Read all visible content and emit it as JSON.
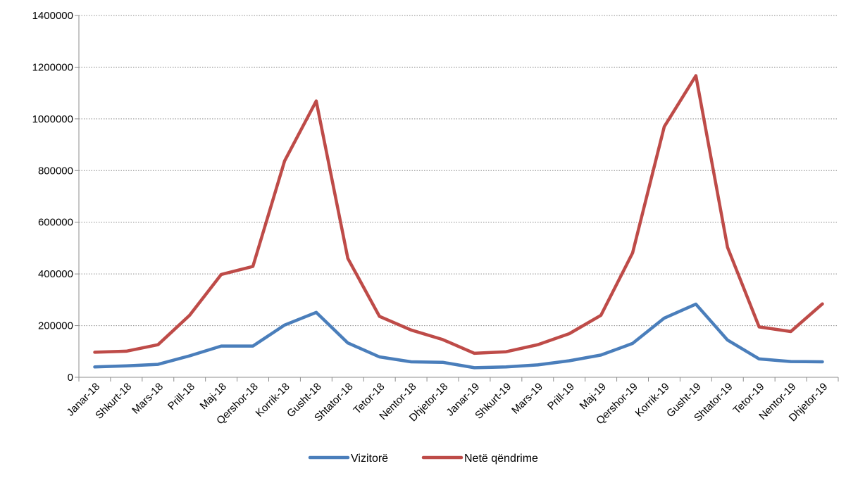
{
  "chart_data": {
    "type": "line",
    "title": "",
    "xlabel": "",
    "ylabel": "",
    "ylim": [
      0,
      1400000
    ],
    "yticks": [
      0,
      200000,
      400000,
      600000,
      800000,
      1000000,
      1200000,
      1400000
    ],
    "ytick_labels": [
      "0",
      "200000",
      "400000",
      "600000",
      "800000",
      "1000000",
      "1200000",
      "1400000"
    ],
    "grid": "horizontal",
    "legend_position": "bottom-center",
    "categories": [
      "Janar-18",
      "Shkurt-18",
      "Mars-18",
      "Prill-18",
      "Maj-18",
      "Qershor-18",
      "Korrik-18",
      "Gusht-18",
      "Shtator-18",
      "Tetor-18",
      "Nentor-18",
      "Dhjetor-18",
      "Janar-19",
      "Shkurt-19",
      "Mars-19",
      "Prill-19",
      "Maj-19",
      "Qershor-19",
      "Korrik-19",
      "Gusht-19",
      "Shtator-19",
      "Tetor-19",
      "Nentor-19",
      "Dhjetor-19"
    ],
    "series": [
      {
        "name": "Vizitorë",
        "color": "#4a7ebb",
        "values": [
          40000,
          44000,
          50000,
          83000,
          121000,
          121000,
          202000,
          251000,
          133000,
          79000,
          60000,
          58000,
          37000,
          40000,
          48000,
          64000,
          86000,
          131000,
          229000,
          283000,
          144000,
          71000,
          61000,
          60000
        ]
      },
      {
        "name": "Netë qëndrime",
        "color": "#be4b48",
        "values": [
          97000,
          101000,
          126000,
          240000,
          398000,
          429000,
          837000,
          1069000,
          460000,
          236000,
          183000,
          146000,
          93000,
          99000,
          126000,
          169000,
          240000,
          481000,
          970000,
          1167000,
          503000,
          195000,
          177000,
          284000
        ]
      }
    ]
  }
}
